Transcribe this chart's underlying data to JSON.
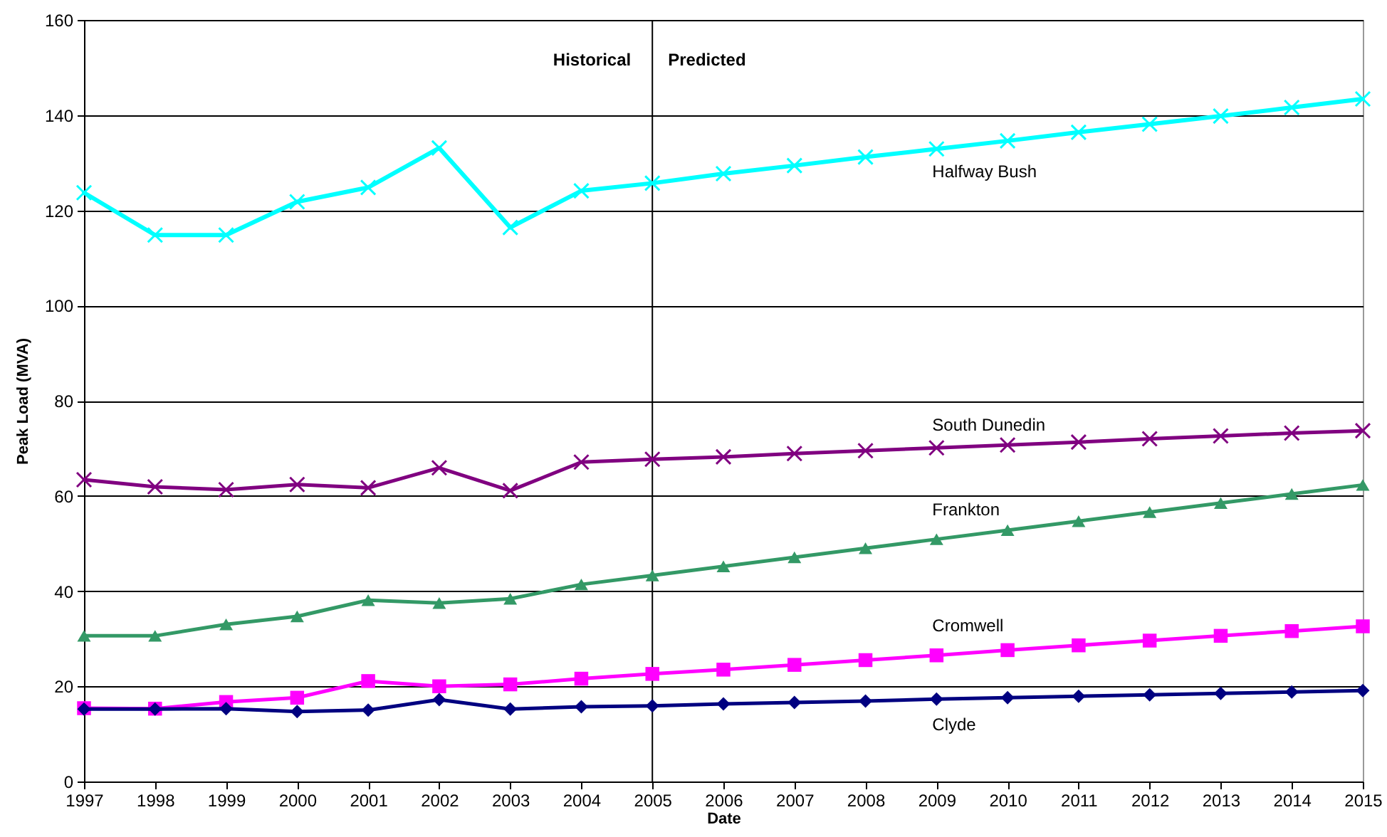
{
  "chart_data": {
    "type": "line",
    "xlabel": "Date",
    "ylabel": "Peak Load (MVA)",
    "x": [
      1997,
      1998,
      1999,
      2000,
      2001,
      2002,
      2003,
      2004,
      2005,
      2006,
      2007,
      2008,
      2009,
      2010,
      2011,
      2012,
      2013,
      2014,
      2015
    ],
    "xlim": [
      1997,
      2015
    ],
    "xticks": [
      1997,
      1998,
      1999,
      2000,
      2001,
      2002,
      2003,
      2004,
      2005,
      2006,
      2007,
      2008,
      2009,
      2010,
      2011,
      2012,
      2013,
      2014,
      2015
    ],
    "ylim": [
      0,
      160
    ],
    "yticks": [
      0,
      20,
      40,
      60,
      80,
      100,
      120,
      140,
      160
    ],
    "grid": "y",
    "legend": false,
    "line_style": "solid",
    "ref_lines": [
      {
        "axis": "x",
        "value": 2005,
        "color": "#000000"
      }
    ],
    "annotations": [
      "Historical",
      "Predicted"
    ],
    "series": [
      {
        "name": "Halfway Bush",
        "color": "#00ffff",
        "marker": "cross",
        "values": [
          123.7,
          114.8,
          114.8,
          121.8,
          124.8,
          133.1,
          116.4,
          124.1,
          125.7,
          127.7,
          129.4,
          131.2,
          132.9,
          134.6,
          136.4,
          138.1,
          139.8,
          141.6,
          143.4
        ]
      },
      {
        "name": "South Dunedin",
        "color": "#800080",
        "marker": "cross",
        "values": [
          63.4,
          61.9,
          61.3,
          62.4,
          61.7,
          65.9,
          61.1,
          67.1,
          67.7,
          68.2,
          68.9,
          69.5,
          70.1,
          70.7,
          71.3,
          72.0,
          72.6,
          73.2,
          73.7
        ]
      },
      {
        "name": "Frankton",
        "color": "#339966",
        "marker": "triangle",
        "values": [
          30.6,
          30.6,
          33.0,
          34.7,
          38.1,
          37.5,
          38.4,
          41.4,
          43.3,
          45.2,
          47.1,
          49.0,
          50.9,
          52.8,
          54.7,
          56.6,
          58.5,
          60.4,
          62.3
        ]
      },
      {
        "name": "Cromwell",
        "color": "#ff00ff",
        "marker": "square",
        "values": [
          15.4,
          15.3,
          16.7,
          17.6,
          21.1,
          20.0,
          20.4,
          21.6,
          22.6,
          23.5,
          24.5,
          25.5,
          26.5,
          27.6,
          28.6,
          29.6,
          30.6,
          31.6,
          32.6
        ]
      },
      {
        "name": "Clyde",
        "color": "#000080",
        "marker": "diamond",
        "values": [
          15.2,
          15.2,
          15.3,
          14.7,
          15.0,
          17.2,
          15.2,
          15.7,
          15.9,
          16.3,
          16.6,
          16.9,
          17.3,
          17.6,
          17.9,
          18.2,
          18.5,
          18.8,
          19.1
        ]
      }
    ]
  }
}
